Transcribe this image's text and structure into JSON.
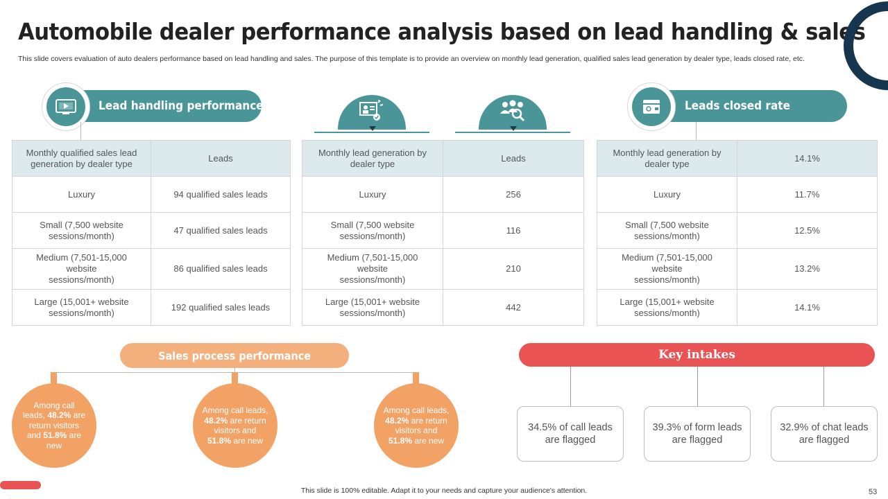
{
  "title": "Automobile dealer performance analysis based on lead handling & sales",
  "subtitle": "This slide covers evaluation of auto dealers performance based on lead handling and sales. The purpose of this template is to provide an overview on monthly lead generation, qualified sales lead generation by dealer type, leads closed rate, etc.",
  "lead_handling": {
    "label": "Lead handling performance",
    "icon": "video-screen-icon",
    "table": {
      "header": [
        "Monthly qualified sales lead generation by dealer type",
        "Leads"
      ],
      "rows": [
        [
          "Luxury",
          "94 qualified sales leads"
        ],
        [
          "Small (7,500 website sessions/month)",
          "47 qualified sales leads"
        ],
        [
          "Medium (7,501-15,000 website sessions/month)",
          "86 qualified sales leads"
        ],
        [
          "Large (15,001+ website sessions/month)",
          "192 qualified sales leads"
        ]
      ]
    }
  },
  "lead_generation": {
    "icons": [
      "presentation-icon",
      "team-search-icon"
    ],
    "table": {
      "header": [
        "Monthly lead generation by dealer type",
        "Leads"
      ],
      "rows": [
        [
          "Luxury",
          "256"
        ],
        [
          "Small (7,500 website sessions/month)",
          "116"
        ],
        [
          "Medium (7,501-15,000 website sessions/month)",
          "210"
        ],
        [
          "Large (15,001+ website sessions/month)",
          "442"
        ]
      ]
    }
  },
  "leads_closed": {
    "label": "Leads closed rate",
    "icon": "wallet-icon",
    "table": {
      "header": [
        "Monthly lead generation by dealer type",
        "14.1%"
      ],
      "rows": [
        [
          "Luxury",
          "11.7%"
        ],
        [
          "Small (7,500 website sessions/month)",
          "12.5%"
        ],
        [
          "Medium (7,501-15,000 website sessions/month)",
          "13.2%"
        ],
        [
          "Large (15,001+ website sessions/month)",
          "14.1%"
        ]
      ]
    }
  },
  "sales_process": {
    "label": "Sales process performance",
    "circles": [
      {
        "pre": "Among call leads, ",
        "b1": "48.2%",
        "mid": " are return visitors and ",
        "b2": "51.8%",
        "post": " are new"
      },
      {
        "pre": "Among call leads, ",
        "b1": "48.2%",
        "mid": " are return visitors and ",
        "b2": "51.8%",
        "post": " are new"
      },
      {
        "pre": "Among call leads, ",
        "b1": "48.2%",
        "mid": " are return visitors and ",
        "b2": "51.8%",
        "post": " are new"
      }
    ]
  },
  "key_intakes": {
    "label": "Key intakes",
    "items": [
      "34.5% of call leads are flagged",
      "39.3% of form leads are flagged",
      "32.9% of chat leads are flagged"
    ]
  },
  "footer": "This slide is 100% editable. Adapt it to your needs and capture your audience's attention.",
  "page_number": "53",
  "colors": {
    "teal": "#4a9598",
    "orange": "#f3a266",
    "red": "#e95353",
    "navy": "#16364f"
  }
}
